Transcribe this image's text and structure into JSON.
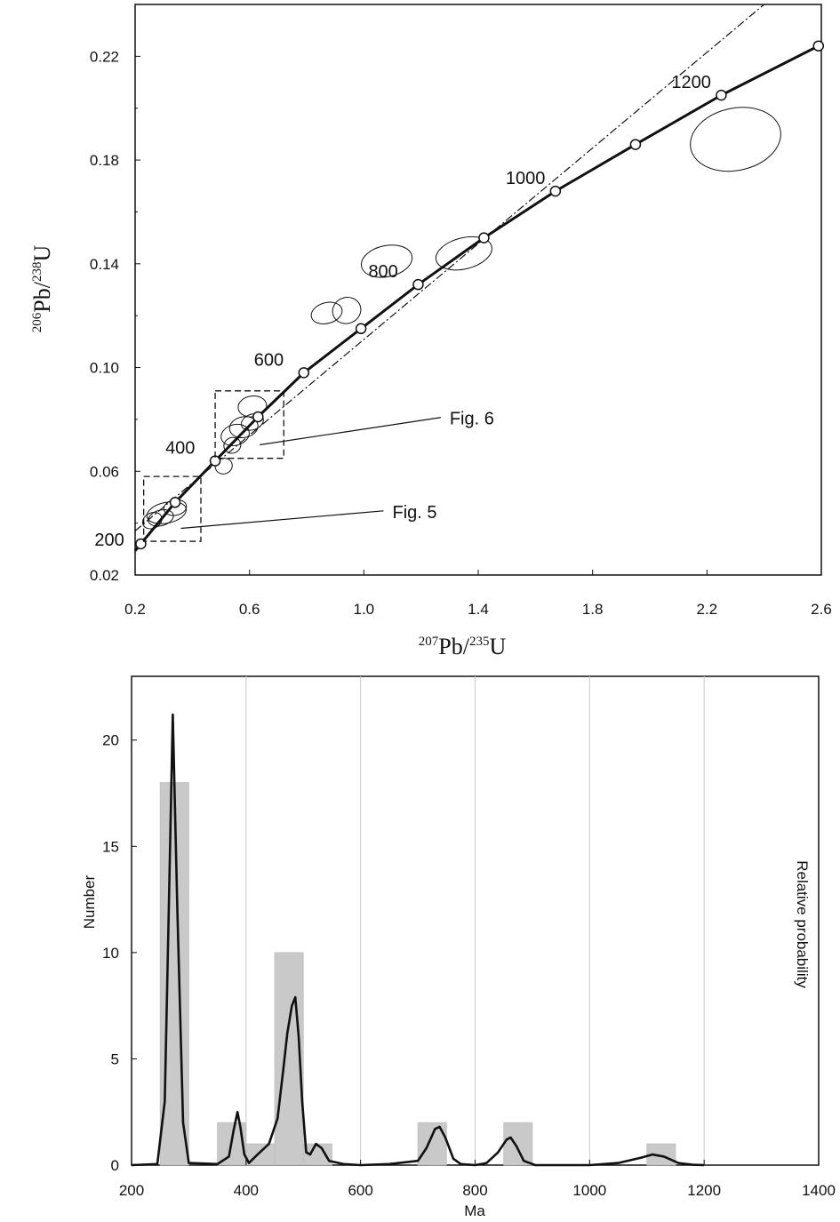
{
  "chart_data": [
    {
      "type": "scatter",
      "subtype": "concordia",
      "xlabel": {
        "sup1": "207",
        "base1": "Pb/",
        "sup2": "235",
        "base2": "U"
      },
      "ylabel": {
        "sup1": "206",
        "base1": "Pb/",
        "sup2": "238",
        "base2": "U"
      },
      "xlim": [
        0.2,
        2.6
      ],
      "ylim": [
        0.02,
        0.24
      ],
      "xticks": [
        "0.2",
        "0.6",
        "1.0",
        "1.4",
        "1.8",
        "2.2",
        "2.6"
      ],
      "yticks": [
        "0.02",
        "0.06",
        "0.10",
        "0.14",
        "0.18",
        "0.22"
      ],
      "concordia_points": [
        {
          "x": 0.22,
          "y": 0.032,
          "label": "200"
        },
        {
          "x": 0.34,
          "y": 0.048,
          "label": ""
        },
        {
          "x": 0.48,
          "y": 0.064,
          "label": "400"
        },
        {
          "x": 0.63,
          "y": 0.081,
          "label": ""
        },
        {
          "x": 0.79,
          "y": 0.098,
          "label": "600"
        },
        {
          "x": 0.99,
          "y": 0.115,
          "label": ""
        },
        {
          "x": 1.19,
          "y": 0.132,
          "label": "800"
        },
        {
          "x": 1.42,
          "y": 0.15,
          "label": ""
        },
        {
          "x": 1.67,
          "y": 0.168,
          "label": "1000"
        },
        {
          "x": 1.95,
          "y": 0.186,
          "label": ""
        },
        {
          "x": 2.25,
          "y": 0.205,
          "label": "1200"
        },
        {
          "x": 2.59,
          "y": 0.224,
          "label": ""
        }
      ],
      "discordia_line": [
        [
          0.2,
          0.037
        ],
        [
          2.4,
          0.24
        ]
      ],
      "error_ellipses": [
        {
          "x": 0.31,
          "y": 0.044,
          "rx": 0.07,
          "ry": 0.004,
          "angle": -12
        },
        {
          "x": 0.29,
          "y": 0.042,
          "rx": 0.045,
          "ry": 0.003,
          "angle": -15
        },
        {
          "x": 0.34,
          "y": 0.046,
          "rx": 0.04,
          "ry": 0.003,
          "angle": -10
        },
        {
          "x": 0.26,
          "y": 0.041,
          "rx": 0.035,
          "ry": 0.003,
          "angle": -25
        },
        {
          "x": 0.51,
          "y": 0.062,
          "rx": 0.03,
          "ry": 0.003,
          "angle": -20
        },
        {
          "x": 0.55,
          "y": 0.074,
          "rx": 0.05,
          "ry": 0.004,
          "angle": -15
        },
        {
          "x": 0.58,
          "y": 0.077,
          "rx": 0.05,
          "ry": 0.004,
          "angle": -10
        },
        {
          "x": 0.61,
          "y": 0.079,
          "rx": 0.04,
          "ry": 0.003,
          "angle": -20
        },
        {
          "x": 0.54,
          "y": 0.07,
          "rx": 0.03,
          "ry": 0.003,
          "angle": -25
        },
        {
          "x": 0.61,
          "y": 0.085,
          "rx": 0.05,
          "ry": 0.004,
          "angle": -8
        },
        {
          "x": 0.87,
          "y": 0.121,
          "rx": 0.055,
          "ry": 0.004,
          "angle": -15
        },
        {
          "x": 0.94,
          "y": 0.122,
          "rx": 0.05,
          "ry": 0.005,
          "angle": -20
        },
        {
          "x": 1.08,
          "y": 0.141,
          "rx": 0.09,
          "ry": 0.006,
          "angle": -12
        },
        {
          "x": 1.35,
          "y": 0.144,
          "rx": 0.1,
          "ry": 0.006,
          "angle": -14
        },
        {
          "x": 2.3,
          "y": 0.188,
          "rx": 0.16,
          "ry": 0.012,
          "angle": -12
        }
      ],
      "annotations": [
        {
          "text": "Fig. 6",
          "box": [
            0.48,
            0.065,
            0.72,
            0.091
          ],
          "label_at": [
            1.3,
            0.078
          ]
        },
        {
          "text": "Fig. 5",
          "box": [
            0.23,
            0.033,
            0.43,
            0.058
          ],
          "label_at": [
            1.1,
            0.042
          ]
        }
      ]
    },
    {
      "type": "bar",
      "subtype": "histogram-with-probability-density",
      "xlabel": "Ma",
      "ylabel": "Number",
      "y2label": "Relative probability",
      "xlim": [
        200,
        1400
      ],
      "ylim": [
        0,
        23
      ],
      "xticks": [
        "200",
        "400",
        "600",
        "800",
        "1000",
        "1200",
        "1400"
      ],
      "yticks": [
        "0",
        "5",
        "10",
        "15",
        "20"
      ],
      "grid": "vertical",
      "bins": [
        {
          "from": 250,
          "to": 300,
          "value": 18
        },
        {
          "from": 350,
          "to": 400,
          "value": 2
        },
        {
          "from": 400,
          "to": 450,
          "value": 1
        },
        {
          "from": 450,
          "to": 500,
          "value": 10
        },
        {
          "from": 500,
          "to": 550,
          "value": 1
        },
        {
          "from": 700,
          "to": 750,
          "value": 2
        },
        {
          "from": 850,
          "to": 900,
          "value": 2
        },
        {
          "from": 1100,
          "to": 1150,
          "value": 1
        }
      ],
      "probability_curve": [
        [
          200,
          0.0
        ],
        [
          245,
          0.05
        ],
        [
          258,
          3.0
        ],
        [
          265,
          12.0
        ],
        [
          272,
          21.2
        ],
        [
          280,
          12.0
        ],
        [
          290,
          2.0
        ],
        [
          300,
          0.1
        ],
        [
          350,
          0.05
        ],
        [
          370,
          0.4
        ],
        [
          378,
          1.6
        ],
        [
          385,
          2.5
        ],
        [
          390,
          1.8
        ],
        [
          397,
          0.5
        ],
        [
          405,
          0.1
        ],
        [
          420,
          0.5
        ],
        [
          440,
          1.0
        ],
        [
          455,
          2.2
        ],
        [
          465,
          4.5
        ],
        [
          472,
          6.2
        ],
        [
          480,
          7.5
        ],
        [
          486,
          7.9
        ],
        [
          492,
          6.0
        ],
        [
          498,
          3.0
        ],
        [
          505,
          0.6
        ],
        [
          512,
          0.5
        ],
        [
          522,
          1.0
        ],
        [
          532,
          0.8
        ],
        [
          545,
          0.2
        ],
        [
          570,
          0.05
        ],
        [
          600,
          0.0
        ],
        [
          650,
          0.05
        ],
        [
          700,
          0.2
        ],
        [
          715,
          0.8
        ],
        [
          730,
          1.7
        ],
        [
          738,
          1.8
        ],
        [
          748,
          1.3
        ],
        [
          762,
          0.3
        ],
        [
          775,
          0.05
        ],
        [
          800,
          0.0
        ],
        [
          820,
          0.1
        ],
        [
          840,
          0.6
        ],
        [
          855,
          1.2
        ],
        [
          862,
          1.3
        ],
        [
          872,
          0.9
        ],
        [
          885,
          0.2
        ],
        [
          905,
          0.0
        ],
        [
          1000,
          0.0
        ],
        [
          1050,
          0.1
        ],
        [
          1090,
          0.35
        ],
        [
          1110,
          0.5
        ],
        [
          1130,
          0.4
        ],
        [
          1155,
          0.1
        ],
        [
          1180,
          0.02
        ],
        [
          1200,
          0.0
        ]
      ]
    }
  ]
}
